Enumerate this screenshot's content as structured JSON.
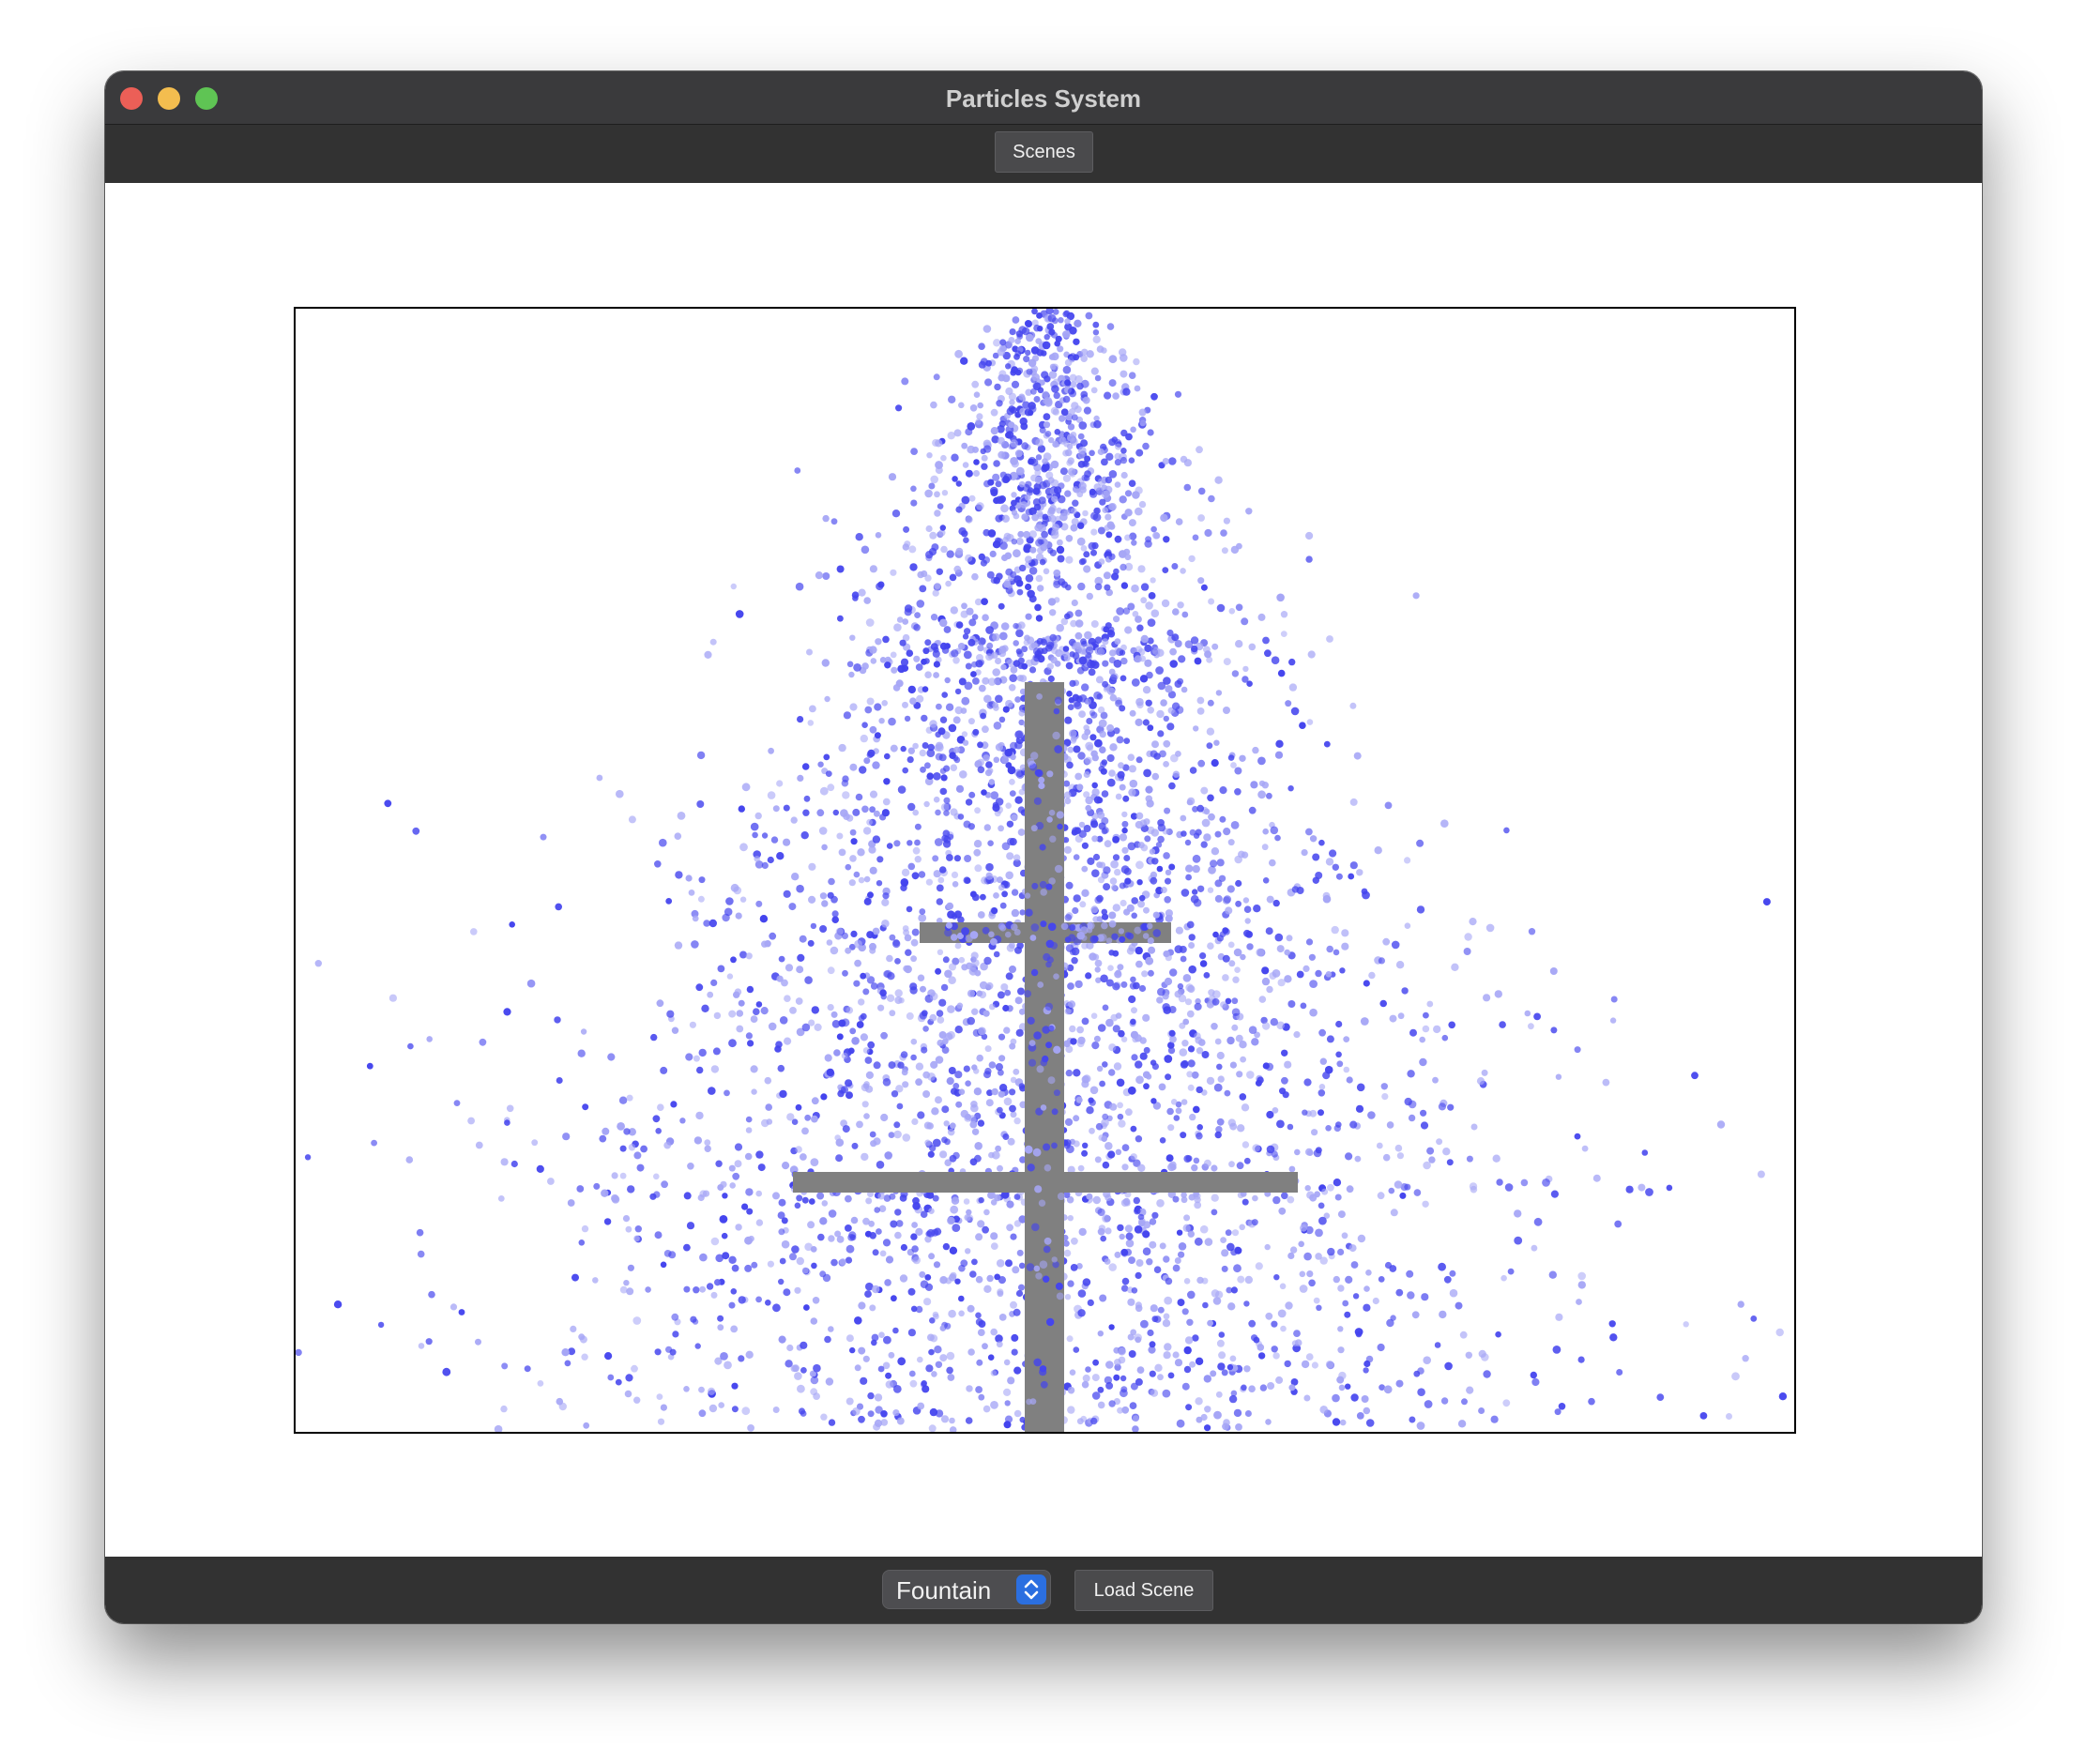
{
  "window": {
    "title": "Particles System"
  },
  "toolbar": {
    "scenes_label": "Scenes"
  },
  "bottom": {
    "scene_select": {
      "selected": "Fountain"
    },
    "load_label": "Load Scene"
  },
  "colors": {
    "particle": "#4444ee",
    "particle_light": "#a6a6f6",
    "obstacle": "#808080",
    "titlebar": "#3a3a3c",
    "accent": "#2b6fe0"
  },
  "icons": {
    "select_chevrons": "up-down-chevron-icon"
  }
}
